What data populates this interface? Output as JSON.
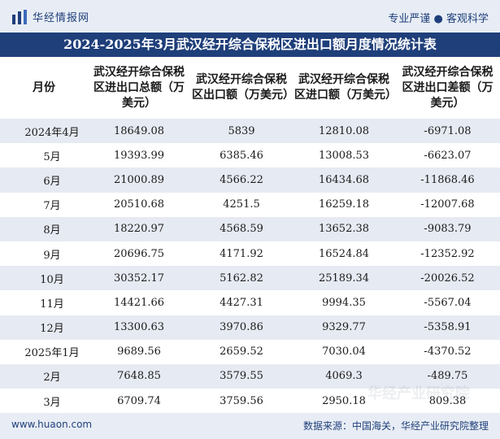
{
  "header": {
    "logo_text": "华经情报网",
    "tagline": "专业严谨 ● 客观科学"
  },
  "title": "2024-2025年3月武汉经开综合保税区进出口额月度情况统计表",
  "table": {
    "columns": [
      "月份",
      "武汉经开综合保税区进出口总额（万美元）",
      "武汉经开综合保税区出口额（万美元）",
      "武汉经开综合保税区进口额（万美元）",
      "武汉经开综合保税区进出口差额（万美元）"
    ],
    "rows": [
      {
        "month": "2024年4月",
        "total": "18649.08",
        "export": "5839",
        "import": "12810.08",
        "balance": "-6971.08"
      },
      {
        "month": "5月",
        "total": "19393.99",
        "export": "6385.46",
        "import": "13008.53",
        "balance": "-6623.07"
      },
      {
        "month": "6月",
        "total": "21000.89",
        "export": "4566.22",
        "import": "16434.68",
        "balance": "-11868.46"
      },
      {
        "month": "7月",
        "total": "20510.68",
        "export": "4251.5",
        "import": "16259.18",
        "balance": "-12007.68"
      },
      {
        "month": "8月",
        "total": "18220.97",
        "export": "4568.59",
        "import": "13652.38",
        "balance": "-9083.79"
      },
      {
        "month": "9月",
        "total": "20696.75",
        "export": "4171.92",
        "import": "16524.84",
        "balance": "-12352.92"
      },
      {
        "month": "10月",
        "total": "30352.17",
        "export": "5162.82",
        "import": "25189.34",
        "balance": "-20026.52"
      },
      {
        "month": "11月",
        "total": "14421.66",
        "export": "4427.31",
        "import": "9994.35",
        "balance": "-5567.04"
      },
      {
        "month": "12月",
        "total": "13300.63",
        "export": "3970.86",
        "import": "9329.77",
        "balance": "-5358.91"
      },
      {
        "month": "2025年1月",
        "total": "9689.56",
        "export": "2659.52",
        "import": "7030.04",
        "balance": "-4370.52"
      },
      {
        "month": "2月",
        "total": "7648.85",
        "export": "3579.55",
        "import": "4069.3",
        "balance": "-489.75"
      },
      {
        "month": "3月",
        "total": "6709.74",
        "export": "3759.56",
        "import": "2950.18",
        "balance": "809.38"
      }
    ]
  },
  "footer": {
    "site": "www.huaon.com",
    "source": "数据来源：中国海关，华经产业研究院整理"
  },
  "watermark": "华经产业研究院",
  "colors": {
    "brand": "#1f3f7a",
    "stripe": "#e6eaf2",
    "bar": "#e8edf5"
  }
}
